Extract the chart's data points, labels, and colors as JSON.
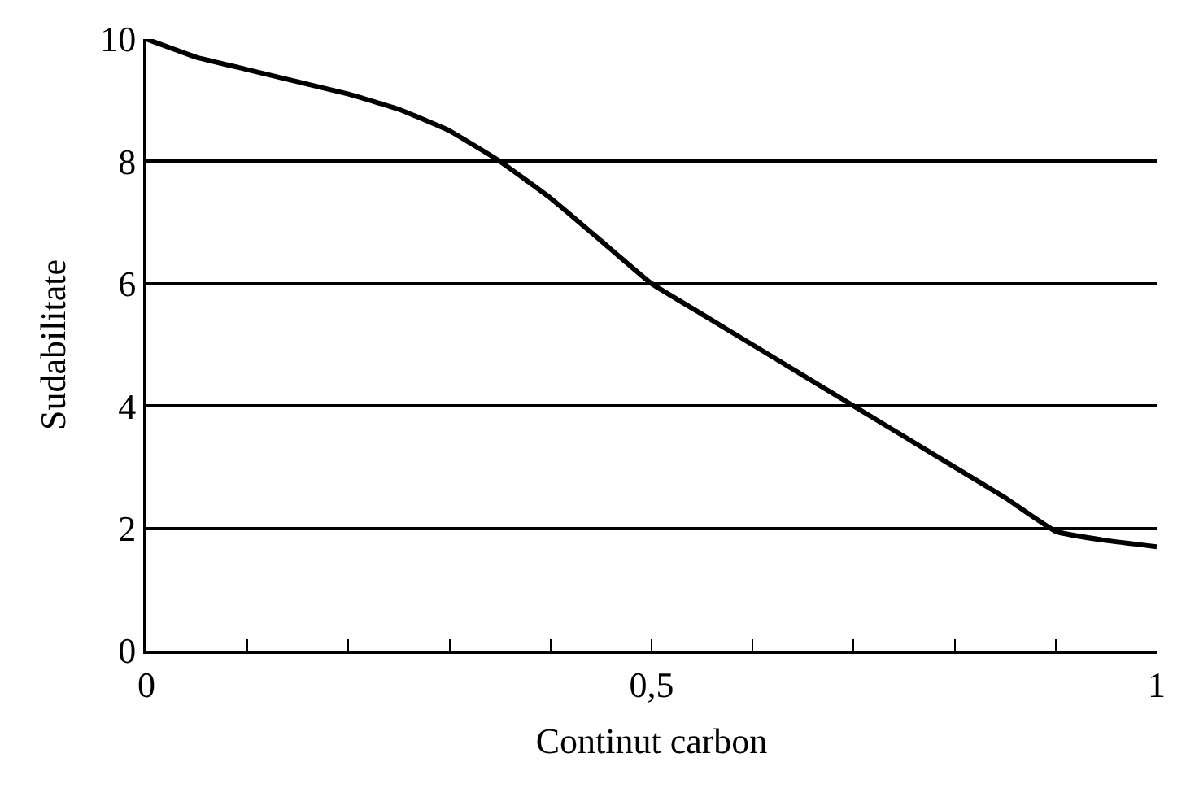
{
  "chart_data": {
    "type": "line",
    "xlabel": "Continut carbon",
    "ylabel": "Sudabilitate",
    "x": [
      0,
      0.05,
      0.1,
      0.15,
      0.2,
      0.25,
      0.3,
      0.35,
      0.4,
      0.45,
      0.5,
      0.55,
      0.6,
      0.65,
      0.7,
      0.75,
      0.8,
      0.85,
      0.9,
      0.95,
      1
    ],
    "series": [
      {
        "color": "#000000",
        "values": [
          10,
          9.7,
          9.5,
          9.3,
          9.1,
          8.85,
          8.5,
          8.0,
          7.4,
          6.7,
          6.0,
          5.5,
          5.0,
          4.5,
          4.0,
          3.5,
          3.0,
          2.5,
          1.95,
          1.8,
          1.7
        ]
      }
    ],
    "xlim": [
      0,
      1
    ],
    "ylim": [
      0,
      10
    ],
    "xticks": [
      0,
      {
        "value": 0.1,
        "label": null
      },
      {
        "value": 0.2,
        "label": null
      },
      {
        "value": 0.3,
        "label": null
      },
      {
        "value": 0.4,
        "label": null
      },
      {
        "value": 0.5,
        "label": "0,5"
      },
      {
        "value": 0.6,
        "label": null
      },
      {
        "value": 0.7,
        "label": null
      },
      {
        "value": 0.8,
        "label": null
      },
      {
        "value": 0.9,
        "label": null
      },
      1
    ],
    "yticks": [
      0,
      2,
      4,
      6,
      8,
      10
    ],
    "grid": "y",
    "marker": "none",
    "line_style": "solid"
  }
}
